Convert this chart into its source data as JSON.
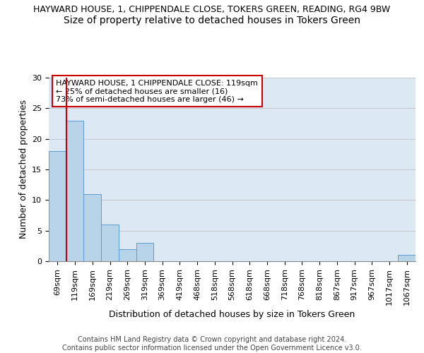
{
  "title": "HAYWARD HOUSE, 1, CHIPPENDALE CLOSE, TOKERS GREEN, READING, RG4 9BW",
  "subtitle": "Size of property relative to detached houses in Tokers Green",
  "xlabel": "Distribution of detached houses by size in Tokers Green",
  "ylabel": "Number of detached properties",
  "bin_labels": [
    "69sqm",
    "119sqm",
    "169sqm",
    "219sqm",
    "269sqm",
    "319sqm",
    "369sqm",
    "419sqm",
    "468sqm",
    "518sqm",
    "568sqm",
    "618sqm",
    "668sqm",
    "718sqm",
    "768sqm",
    "818sqm",
    "867sqm",
    "917sqm",
    "967sqm",
    "1017sqm",
    "1067sqm"
  ],
  "bar_heights": [
    18,
    23,
    11,
    6,
    2,
    3,
    0,
    0,
    0,
    0,
    0,
    0,
    0,
    0,
    0,
    0,
    0,
    0,
    0,
    0,
    1
  ],
  "bar_color": "#B8D4E8",
  "bar_edge_color": "#5B9BD5",
  "grid_color": "#C8C8C8",
  "background_color": "#DCE9F5",
  "red_line_bin_index": 1,
  "annotation_text": "HAYWARD HOUSE, 1 CHIPPENDALE CLOSE: 119sqm\n← 25% of detached houses are smaller (16)\n73% of semi-detached houses are larger (46) →",
  "annotation_box_facecolor": "#FFFFFF",
  "annotation_box_edgecolor": "#CC0000",
  "ylim": [
    0,
    30
  ],
  "yticks": [
    0,
    5,
    10,
    15,
    20,
    25,
    30
  ],
  "footer_text": "Contains HM Land Registry data © Crown copyright and database right 2024.\nContains public sector information licensed under the Open Government Licence v3.0.",
  "title_fontsize": 9,
  "subtitle_fontsize": 10,
  "xlabel_fontsize": 9,
  "ylabel_fontsize": 9,
  "tick_fontsize": 8,
  "annotation_fontsize": 8,
  "footer_fontsize": 7
}
